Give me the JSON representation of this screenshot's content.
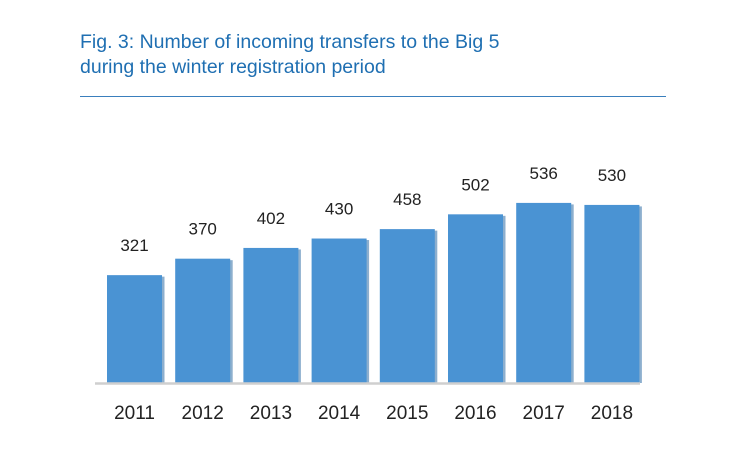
{
  "title": {
    "line1": "Fig. 3: Number of incoming transfers to the Big 5",
    "line2": "during the winter registration period"
  },
  "colors": {
    "title": "#1f6fb2",
    "bar": "#4a93d3",
    "bar_shadow": "#2f6ea6",
    "baseline": "#cfcfcf"
  },
  "chart_data": {
    "type": "bar",
    "title": "Fig. 3: Number of incoming transfers to the Big 5 during the winter registration period",
    "categories": [
      "2011",
      "2012",
      "2013",
      "2014",
      "2015",
      "2016",
      "2017",
      "2018"
    ],
    "values": [
      321,
      370,
      402,
      430,
      458,
      502,
      536,
      530
    ],
    "data_labels": [
      "321",
      "370",
      "402",
      "430",
      "458",
      "502",
      "536",
      "530"
    ],
    "xlabel": "",
    "ylabel": "",
    "ylim": [
      0,
      600
    ],
    "grid": false,
    "legend": "none"
  }
}
